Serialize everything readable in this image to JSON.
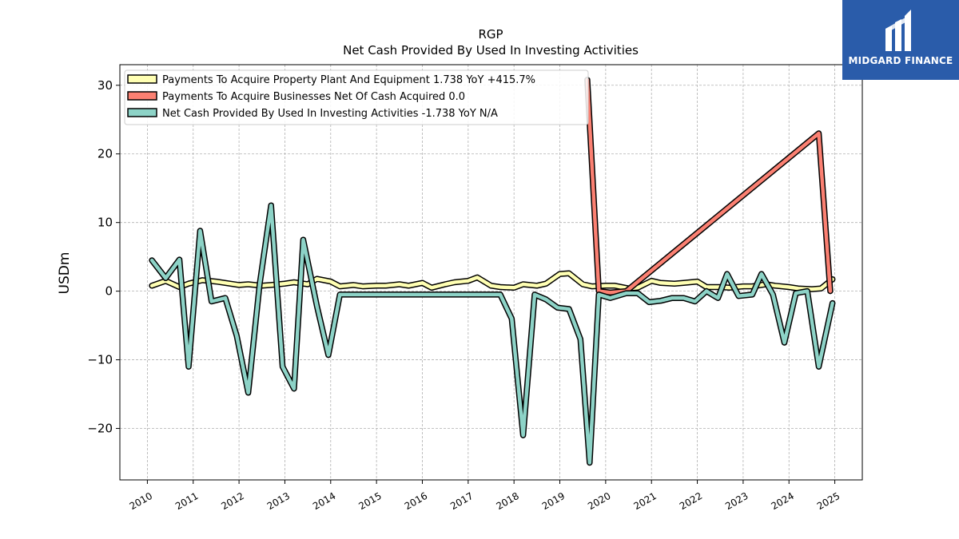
{
  "brand": {
    "name": "MIDGARD FINANCE",
    "bg_color": "#2a5caa",
    "icon": "midgard-logo-icon"
  },
  "chart_data": {
    "type": "line",
    "title": "RGP",
    "subtitle": "Net Cash Provided By Used In Investing Activities",
    "ylabel": "USDm",
    "xlabel": "",
    "xlim": [
      2009.4,
      2025.6
    ],
    "ylim": [
      -27.5,
      33.0
    ],
    "yticks": [
      -20,
      -10,
      0,
      10,
      20,
      30
    ],
    "ytick_labels": [
      "−20",
      "−10",
      "0",
      "10",
      "20",
      "30"
    ],
    "xticks": [
      2010,
      2011,
      2012,
      2013,
      2014,
      2015,
      2016,
      2017,
      2018,
      2019,
      2020,
      2021,
      2022,
      2023,
      2024,
      2025
    ],
    "xtick_labels": [
      "2010",
      "2011",
      "2012",
      "2013",
      "2014",
      "2015",
      "2016",
      "2017",
      "2018",
      "2019",
      "2020",
      "2021",
      "2022",
      "2023",
      "2024",
      "2025"
    ],
    "grid": true,
    "legend_position": "top-left",
    "series": [
      {
        "name": "Payments To Acquire Property Plant And Equipment",
        "legend": "Payments To Acquire Property Plant And Equipment  1.738 YoY +415.7%",
        "color": "#ffffb3",
        "points": [
          [
            2010.1,
            0.8
          ],
          [
            2010.4,
            1.5
          ],
          [
            2010.7,
            0.6
          ],
          [
            2010.9,
            1.1
          ],
          [
            2011.2,
            1.6
          ],
          [
            2011.5,
            1.4
          ],
          [
            2011.7,
            1.2
          ],
          [
            2012.0,
            0.9
          ],
          [
            2012.2,
            1.0
          ],
          [
            2012.5,
            0.8
          ],
          [
            2012.7,
            0.9
          ],
          [
            2013.0,
            1.1
          ],
          [
            2013.2,
            1.3
          ],
          [
            2013.5,
            1.0
          ],
          [
            2013.7,
            1.8
          ],
          [
            2014.0,
            1.4
          ],
          [
            2014.2,
            0.7
          ],
          [
            2014.5,
            0.9
          ],
          [
            2014.7,
            0.7
          ],
          [
            2015.0,
            0.8
          ],
          [
            2015.2,
            0.8
          ],
          [
            2015.5,
            1.0
          ],
          [
            2015.7,
            0.8
          ],
          [
            2016.0,
            1.2
          ],
          [
            2016.2,
            0.5
          ],
          [
            2016.5,
            1.0
          ],
          [
            2016.7,
            1.3
          ],
          [
            2017.0,
            1.5
          ],
          [
            2017.2,
            2.0
          ],
          [
            2017.5,
            0.8
          ],
          [
            2017.7,
            0.6
          ],
          [
            2018.0,
            0.5
          ],
          [
            2018.2,
            1.0
          ],
          [
            2018.5,
            0.8
          ],
          [
            2018.7,
            1.1
          ],
          [
            2019.0,
            2.5
          ],
          [
            2019.2,
            2.6
          ],
          [
            2019.5,
            1.0
          ],
          [
            2019.7,
            0.7
          ],
          [
            2020.0,
            0.8
          ],
          [
            2020.2,
            0.8
          ],
          [
            2020.5,
            0.4
          ],
          [
            2020.7,
            0.5
          ],
          [
            2021.0,
            1.5
          ],
          [
            2021.2,
            1.2
          ],
          [
            2021.5,
            1.1
          ],
          [
            2021.7,
            1.2
          ],
          [
            2022.0,
            1.4
          ],
          [
            2022.2,
            0.6
          ],
          [
            2022.5,
            0.6
          ],
          [
            2022.7,
            0.5
          ],
          [
            2023.0,
            0.7
          ],
          [
            2023.2,
            0.7
          ],
          [
            2023.5,
            1.0
          ],
          [
            2023.7,
            0.8
          ],
          [
            2024.0,
            0.6
          ],
          [
            2024.2,
            0.4
          ],
          [
            2024.5,
            0.3
          ],
          [
            2024.7,
            0.4
          ],
          [
            2024.95,
            1.738
          ]
        ]
      },
      {
        "name": "Payments To Acquire Businesses Net Of Cash Acquired",
        "legend": "Payments To Acquire Businesses Net Of Cash Acquired  0.0",
        "color": "#fb8072",
        "points": [
          [
            2019.6,
            30.8
          ],
          [
            2019.85,
            0.0
          ],
          [
            2020.1,
            -0.2
          ],
          [
            2020.45,
            0.0
          ],
          [
            2024.65,
            23.0
          ],
          [
            2024.9,
            0.0
          ]
        ]
      },
      {
        "name": "Net Cash Provided By Used In Investing Activities",
        "legend": "Net Cash Provided By Used In Investing Activities  -1.738 YoY N/A",
        "color": "#8dd3c7",
        "points": [
          [
            2010.1,
            4.5
          ],
          [
            2010.4,
            1.9
          ],
          [
            2010.7,
            4.6
          ],
          [
            2010.9,
            -11.0
          ],
          [
            2011.15,
            8.8
          ],
          [
            2011.4,
            -1.5
          ],
          [
            2011.7,
            -1.0
          ],
          [
            2011.95,
            -6.5
          ],
          [
            2012.2,
            -14.8
          ],
          [
            2012.45,
            1.0
          ],
          [
            2012.7,
            12.5
          ],
          [
            2012.95,
            -11.0
          ],
          [
            2013.2,
            -14.2
          ],
          [
            2013.4,
            7.5
          ],
          [
            2013.7,
            -2.2
          ],
          [
            2013.95,
            -9.3
          ],
          [
            2014.2,
            -0.5
          ],
          [
            2014.5,
            -0.5
          ],
          [
            2014.7,
            -0.5
          ],
          [
            2015.0,
            -0.5
          ],
          [
            2015.3,
            -0.5
          ],
          [
            2015.7,
            -0.5
          ],
          [
            2016.0,
            -0.5
          ],
          [
            2016.3,
            -0.5
          ],
          [
            2016.7,
            -0.5
          ],
          [
            2017.0,
            -0.5
          ],
          [
            2017.3,
            -0.5
          ],
          [
            2017.7,
            -0.5
          ],
          [
            2017.95,
            -4.0
          ],
          [
            2018.2,
            -21.0
          ],
          [
            2018.45,
            -0.5
          ],
          [
            2018.7,
            -1.2
          ],
          [
            2018.95,
            -2.4
          ],
          [
            2019.2,
            -2.6
          ],
          [
            2019.45,
            -7.0
          ],
          [
            2019.65,
            -25.0
          ],
          [
            2019.85,
            -0.5
          ],
          [
            2020.1,
            -1.0
          ],
          [
            2020.45,
            -0.3
          ],
          [
            2020.7,
            -0.3
          ],
          [
            2020.95,
            -1.6
          ],
          [
            2021.2,
            -1.4
          ],
          [
            2021.45,
            -1.0
          ],
          [
            2021.7,
            -1.0
          ],
          [
            2021.95,
            -1.5
          ],
          [
            2022.2,
            0.0
          ],
          [
            2022.45,
            -1.0
          ],
          [
            2022.65,
            2.5
          ],
          [
            2022.9,
            -0.7
          ],
          [
            2023.2,
            -0.5
          ],
          [
            2023.4,
            2.5
          ],
          [
            2023.65,
            -0.5
          ],
          [
            2023.9,
            -7.5
          ],
          [
            2024.15,
            -0.3
          ],
          [
            2024.4,
            0.0
          ],
          [
            2024.65,
            -11.0
          ],
          [
            2024.95,
            -1.738
          ]
        ]
      }
    ]
  }
}
